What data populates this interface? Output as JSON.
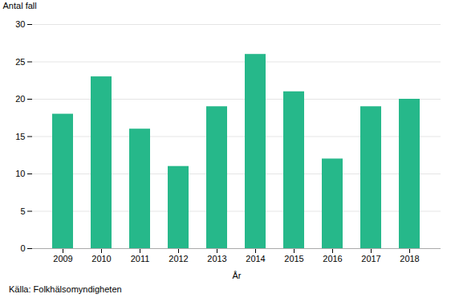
{
  "chart_data": {
    "type": "bar",
    "categories": [
      "2009",
      "2010",
      "2011",
      "2012",
      "2013",
      "2014",
      "2015",
      "2016",
      "2017",
      "2018"
    ],
    "values": [
      18,
      23,
      16,
      11,
      19,
      26,
      21,
      12,
      19,
      20
    ],
    "color": "#26B88A",
    "xlabel": "År",
    "ylabel": "Antal fall",
    "caption": "Källa: Folkhälsomyndigheten",
    "ylim": [
      0,
      30
    ],
    "yticks": [
      0,
      5,
      10,
      15,
      20,
      25,
      30
    ],
    "grid": true
  }
}
